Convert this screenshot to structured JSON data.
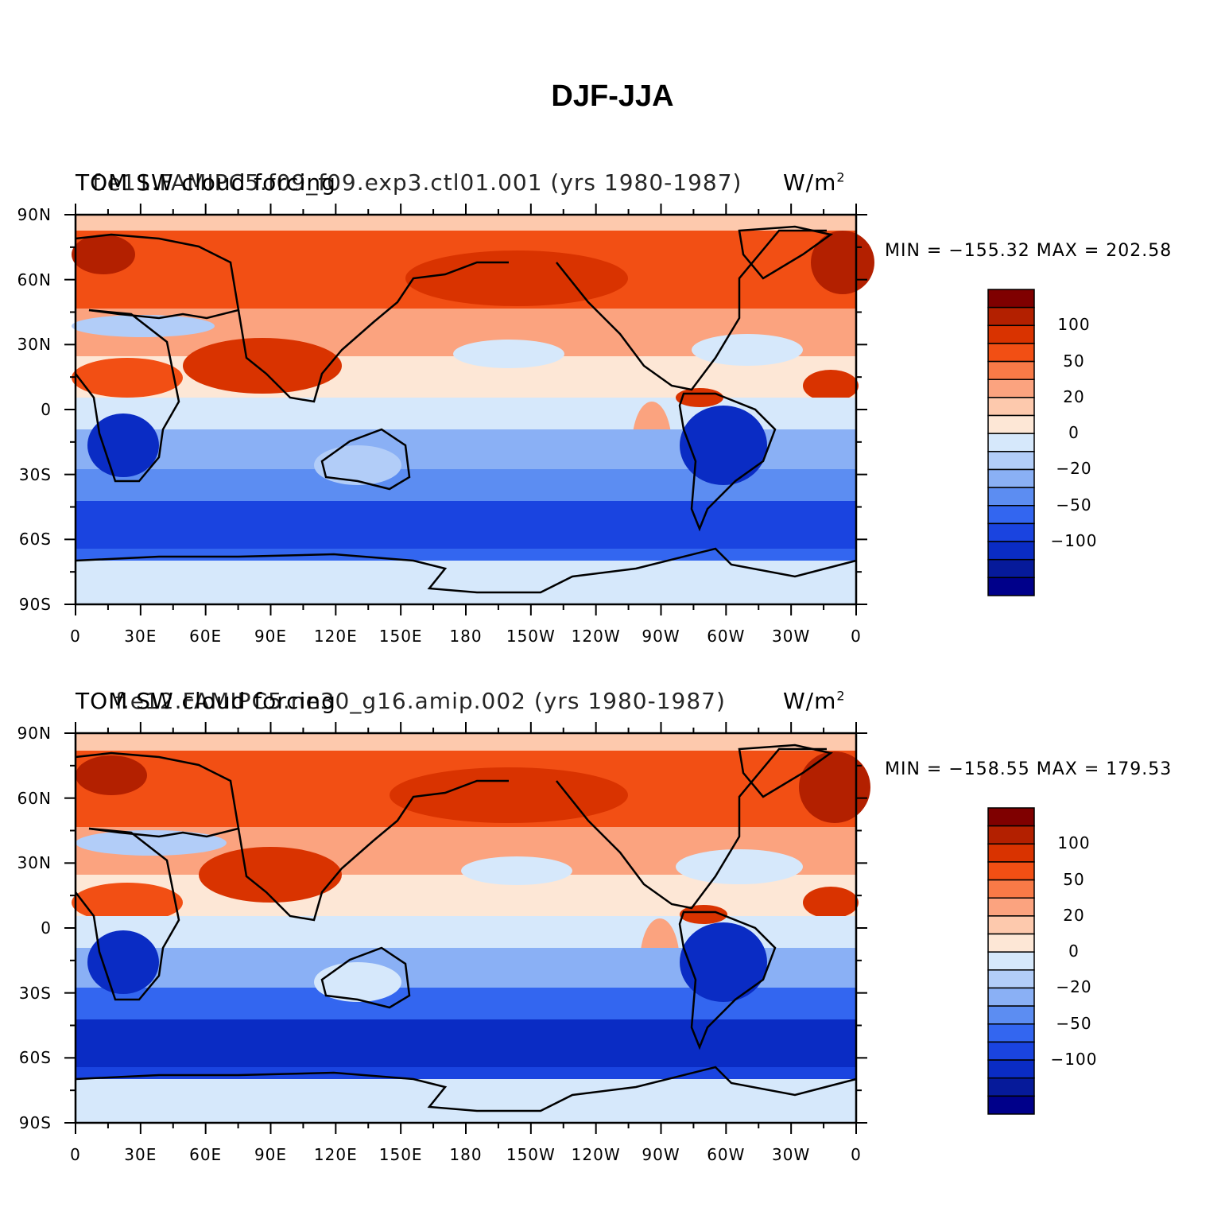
{
  "figure": {
    "title": "DJF-JJA"
  },
  "panels": [
    {
      "case": "f.e11.FAMIPC5.f09_f09.exp3.ctl01.001 (yrs 1980-1987)",
      "variable": "TOM SW cloud forcing",
      "units": "W/m",
      "units_sup": "2",
      "minmax": "MIN = −155.32 MAX = 202.58"
    },
    {
      "case": "f.e12.FAMIPC5.ne30_g16.amip.002 (yrs 1980-1987)",
      "variable": "TOM SW cloud forcing",
      "units": "W/m",
      "units_sup": "2",
      "minmax": "MIN = −158.55 MAX = 179.53"
    }
  ],
  "axes": {
    "lat_ticks": [
      "90N",
      "60N",
      "30N",
      "0",
      "30S",
      "60S",
      "90S"
    ],
    "lon_ticks": [
      "0",
      "30E",
      "60E",
      "90E",
      "120E",
      "150E",
      "180",
      "150W",
      "120W",
      "90W",
      "60W",
      "30W",
      "0"
    ]
  },
  "colorbar": {
    "tick_labels": [
      "100",
      "50",
      "20",
      "0",
      "−20",
      "−50",
      "−100"
    ],
    "colors": [
      "#7f0000",
      "#b32000",
      "#d93300",
      "#f24f14",
      "#f87a47",
      "#fba37f",
      "#fdc9ad",
      "#fde7d6",
      "#d6e8fb",
      "#b2cdf8",
      "#8ab0f5",
      "#5c8df2",
      "#3366f0",
      "#1a44e0",
      "#0a2cc4",
      "#061a9a",
      "#00008a"
    ]
  },
  "map_colors": {
    "deep_red": "#b32000",
    "red": "#d93300",
    "orange": "#f24f14",
    "light_orange": "#f87a47",
    "salmon": "#fba37f",
    "peach": "#fdc9ad",
    "cream": "#fde7d6",
    "pale_blue": "#d6e8fb",
    "light_blue": "#b2cdf8",
    "mid_blue": "#5c8df2",
    "blue": "#1a44e0",
    "deep_blue": "#0a2cc4"
  }
}
